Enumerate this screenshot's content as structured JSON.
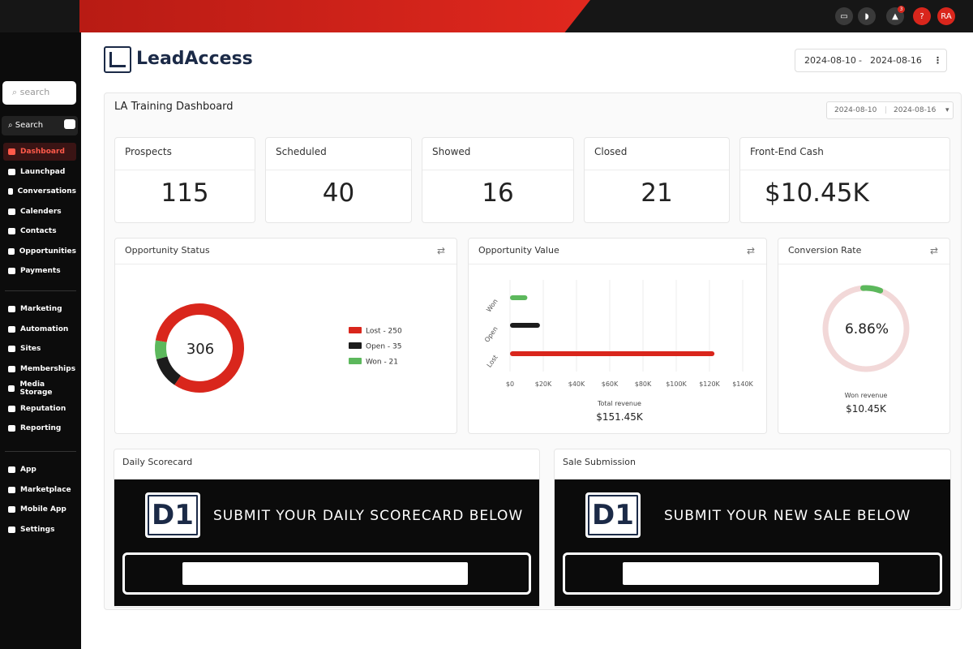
{
  "topbar": {
    "notification_count": "3",
    "help": "?",
    "avatar": "RA"
  },
  "sidebar": {
    "search_placeholder": "search",
    "search_button": "Search",
    "groups": [
      [
        "Dashboard",
        "Launchpad",
        "Conversations",
        "Calenders",
        "Contacts",
        "Opportunities",
        "Payments"
      ],
      [
        "Marketing",
        "Automation",
        "Sites",
        "Memberships",
        "Media Storage",
        "Reputation",
        "Reporting"
      ],
      [
        "App",
        "Marketplace",
        "Mobile App",
        "Settings"
      ]
    ]
  },
  "header": {
    "brand": "LeadAccess",
    "date_from": "2024-08-10",
    "date_separator": "-",
    "date_to": "2024-08-16"
  },
  "dashboard": {
    "title": "LA Training Dashboard",
    "date_from": "2024-08-10",
    "date_to": "2024-08-16",
    "stats": [
      {
        "label": "Prospects",
        "value": 115
      },
      {
        "label": "Scheduled",
        "value": 40
      },
      {
        "label": "Showed",
        "value": 16
      },
      {
        "label": "Closed",
        "value": 21
      },
      {
        "label": "Front-End Cash",
        "value": "$10.45K"
      }
    ],
    "opportunity_status": {
      "type": "pie",
      "title": "Opportunity Status",
      "total": 306,
      "values": [
        250,
        35,
        21
      ],
      "value_labels": [
        "Lost - 250",
        "Open - 35",
        "Won - 21"
      ],
      "colors": [
        "#d9261c",
        "#1c1c1c",
        "#5cb85c"
      ]
    },
    "opportunity_value": {
      "type": "bar",
      "title": "Opportunity Value",
      "categories": [
        "Won",
        "Open",
        "Lost"
      ],
      "values": [
        10450,
        18000,
        123000
      ],
      "colors": [
        "#5cb85c",
        "#1c1c1c",
        "#d9261c"
      ],
      "xlim": [
        0,
        140000
      ],
      "xticks": [
        {
          "value": 0,
          "label": "$0"
        },
        {
          "value": 20000,
          "label": "$20K"
        },
        {
          "value": 40000,
          "label": "$40K"
        },
        {
          "value": 60000,
          "label": "$60K"
        },
        {
          "value": 80000,
          "label": "$80K"
        },
        {
          "value": 100000,
          "label": "$100K"
        },
        {
          "value": 120000,
          "label": "$120K"
        },
        {
          "value": 140000,
          "label": "$140K"
        }
      ],
      "grid": true,
      "total_label": "Total revenue",
      "total": "$151.45K"
    },
    "conversion_rate": {
      "type": "pie",
      "title": "Conversion Rate",
      "values": [
        6.86
      ],
      "value_labels": [
        "6.86%"
      ],
      "color": "#5cb85c",
      "track_color": "#f2d8d8",
      "caption": "Won revenue",
      "caption_value": "$10.45K"
    },
    "forms": [
      {
        "title": "Daily Scorecard",
        "logo": "D1",
        "banner": "SUBMIT YOUR DAILY SCORECARD BELOW"
      },
      {
        "title": "Sale Submission",
        "logo": "D1",
        "banner": "SUBMIT YOUR NEW SALE BELOW"
      }
    ]
  }
}
